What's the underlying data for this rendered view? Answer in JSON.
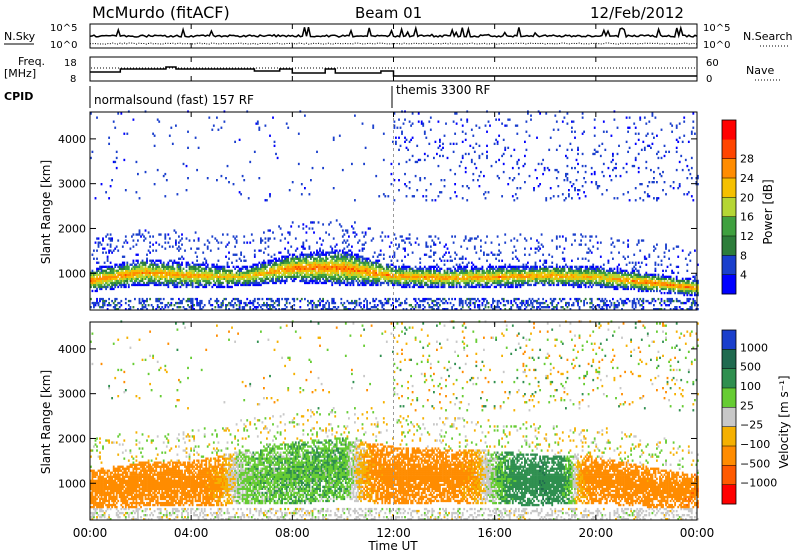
{
  "header": {
    "station": "McMurdo (fitACF)",
    "beam": "Beam 01",
    "date": "12/Feb/2012"
  },
  "strip": {
    "nsky_label": "N.Sky",
    "nsearch_label": "N.Search",
    "freq_label_1": "Freq.",
    "freq_label_2": "[MHz]",
    "nave_label": "Nave",
    "cpid_label": "CPID",
    "left_ticks_top": [
      "10^5",
      "10^0"
    ],
    "right_ticks_top": [
      "10^5",
      "10^0"
    ],
    "left_ticks_freq": [
      "18",
      "8"
    ],
    "right_ticks_nave": [
      "60",
      "0"
    ],
    "cpid_segments": [
      {
        "label": "normalsound (fast) 157 RF",
        "start_hour": 0
      },
      {
        "label": "themis 3300 RF",
        "start_hour": 12
      }
    ]
  },
  "colors": {
    "power_scale": [
      "#0000ff",
      "#1a3fcc",
      "#2d7d3a",
      "#3fa03f",
      "#b5d634",
      "#f5c000",
      "#ff8c00",
      "#ff4500",
      "#ff0000"
    ],
    "velocity_scale": [
      "#1a3fcc",
      "#1f6a4f",
      "#2f8f4f",
      "#66cc33",
      "#c8c8c8",
      "#f5b000",
      "#ff8c00",
      "#ff5a00",
      "#ff0000"
    ]
  },
  "chart_data": [
    {
      "type": "heatmap",
      "quantity": "power",
      "ylabel": "Slant Range [km]",
      "xlabel": "Time UT",
      "x_ticks": [
        "00:00",
        "04:00",
        "08:00",
        "12:00",
        "16:00",
        "20:00",
        "00:00"
      ],
      "y_ticks": [
        1000,
        2000,
        3000,
        4000
      ],
      "ylim": [
        180,
        4600
      ],
      "xlim_hours": [
        0,
        24
      ],
      "colorbar_label": "Power [dB]",
      "colorbar_ticks": [
        4,
        8,
        12,
        16,
        20,
        24,
        28
      ],
      "bands": [
        {
          "hour": 0,
          "center_km": 820,
          "width_km": 260,
          "level": 28
        },
        {
          "hour": 2,
          "center_km": 1000,
          "width_km": 300,
          "level": 26
        },
        {
          "hour": 4,
          "center_km": 930,
          "width_km": 280,
          "level": 26
        },
        {
          "hour": 6,
          "center_km": 900,
          "width_km": 220,
          "level": 22
        },
        {
          "hour": 8,
          "center_km": 1100,
          "width_km": 320,
          "level": 28
        },
        {
          "hour": 10,
          "center_km": 1100,
          "width_km": 400,
          "level": 28
        },
        {
          "hour": 12,
          "center_km": 920,
          "width_km": 240,
          "level": 26
        },
        {
          "hour": 14,
          "center_km": 880,
          "width_km": 240,
          "level": 26
        },
        {
          "hour": 16,
          "center_km": 900,
          "width_km": 240,
          "level": 26
        },
        {
          "hour": 18,
          "center_km": 930,
          "width_km": 240,
          "level": 26
        },
        {
          "hour": 20,
          "center_km": 900,
          "width_km": 240,
          "level": 24
        },
        {
          "hour": 22,
          "center_km": 780,
          "width_km": 220,
          "level": 28
        },
        {
          "hour": 24,
          "center_km": 650,
          "width_km": 180,
          "level": 28
        }
      ]
    },
    {
      "type": "heatmap",
      "quantity": "velocity",
      "ylabel": "Slant Range [km]",
      "xlabel": "Time UT",
      "x_ticks": [
        "00:00",
        "04:00",
        "08:00",
        "12:00",
        "16:00",
        "20:00",
        "00:00"
      ],
      "y_ticks": [
        1000,
        2000,
        3000,
        4000
      ],
      "ylim": [
        180,
        4600
      ],
      "xlim_hours": [
        0,
        24
      ],
      "colorbar_label": "Velocity [m s⁻¹]",
      "colorbar_ticks": [
        "1000",
        "500",
        "100",
        "25",
        "−25",
        "−100",
        "−500",
        "−1000"
      ],
      "bands": [
        {
          "hour": 0,
          "center_km": 850,
          "width_km": 420,
          "level": -300
        },
        {
          "hour": 2,
          "center_km": 950,
          "width_km": 500,
          "level": -300
        },
        {
          "hour": 4,
          "center_km": 980,
          "width_km": 500,
          "level": -300
        },
        {
          "hour": 6,
          "center_km": 1100,
          "width_km": 600,
          "level": 50
        },
        {
          "hour": 8,
          "center_km": 1200,
          "width_km": 700,
          "level": 80
        },
        {
          "hour": 10,
          "center_km": 1300,
          "width_km": 700,
          "level": 80
        },
        {
          "hour": 12,
          "center_km": 1150,
          "width_km": 650,
          "level": -300
        },
        {
          "hour": 14,
          "center_km": 1150,
          "width_km": 600,
          "level": -300
        },
        {
          "hour": 16,
          "center_km": 1100,
          "width_km": 600,
          "level": 60
        },
        {
          "hour": 18,
          "center_km": 1050,
          "width_km": 560,
          "level": 400
        },
        {
          "hour": 20,
          "center_km": 1050,
          "width_km": 520,
          "level": -300
        },
        {
          "hour": 22,
          "center_km": 900,
          "width_km": 450,
          "level": -200
        },
        {
          "hour": 24,
          "center_km": 800,
          "width_km": 360,
          "level": -400
        }
      ]
    }
  ]
}
